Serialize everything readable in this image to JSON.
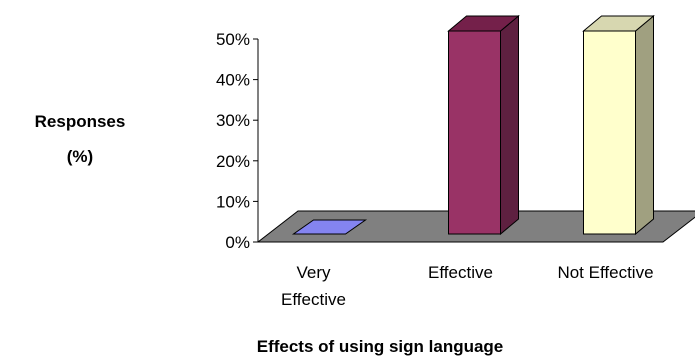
{
  "chart_data": {
    "type": "bar",
    "three_d": true,
    "categories": [
      [
        "Very",
        "Effective"
      ],
      [
        "Effective"
      ],
      [
        "Not Effective"
      ]
    ],
    "values": [
      0,
      50,
      50
    ],
    "colors": [
      "#8484f0",
      "#993366",
      "#ffffcc"
    ],
    "side_colors": [
      "#5a5ab8",
      "#5e2040",
      "#a0a080"
    ],
    "top_colors": [
      "#a9a9ff",
      "#74204a",
      "#d7d7b0"
    ],
    "floor_color": "#808080",
    "ylim": [
      0,
      50
    ],
    "yticks": [
      "0%",
      "10%",
      "20%",
      "30%",
      "40%",
      "50%"
    ],
    "ylabel": [
      "Responses",
      "(%)"
    ],
    "xlabel": "Effects of  using sign language",
    "title": "",
    "grid": false,
    "legend": "none"
  }
}
